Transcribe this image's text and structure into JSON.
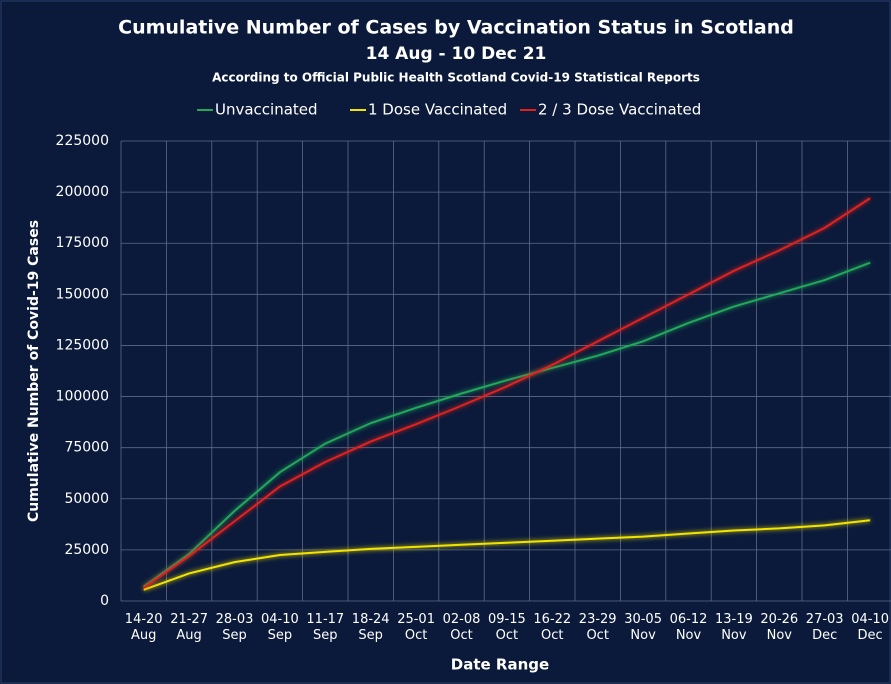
{
  "chart_data": {
    "type": "line",
    "title": "Cumulative Number of Cases by Vaccination Status in Scotland",
    "subtitle": "14 Aug - 10 Dec 21",
    "source": "According to Official Public Health Scotland Covid-19 Statistical Reports",
    "x_label": "Date Range",
    "y_label": "Cumulative Number of Covid-19 Cases",
    "categories": [
      "14-20 Aug",
      "21-27 Aug",
      "28-03 Sep",
      "04-10 Sep",
      "11-17 Sep",
      "18-24 Sep",
      "25-01 Oct",
      "02-08 Oct",
      "09-15 Oct",
      "16-22 Oct",
      "23-29 Oct",
      "30-05 Nov",
      "06-12 Nov",
      "13-19 Nov",
      "20-26 Nov",
      "27-03 Dec",
      "04-10 Dec"
    ],
    "series": [
      {
        "name": "Unvaccinated",
        "color": "#22a85a",
        "values": [
          7000,
          23000,
          44000,
          63000,
          77000,
          87000,
          94500,
          101500,
          108000,
          114000,
          120000,
          127000,
          136000,
          144000,
          150500,
          157000,
          165500
        ]
      },
      {
        "name": "1 Dose Vaccinated",
        "color": "#f2e400",
        "values": [
          5500,
          13500,
          19000,
          22500,
          24000,
          25500,
          26500,
          27500,
          28500,
          29500,
          30500,
          31500,
          33000,
          34500,
          35500,
          37000,
          39500
        ]
      },
      {
        "name": "2 / 3 Dose Vaccinated",
        "color": "#e3201e",
        "values": [
          6500,
          22000,
          39000,
          56000,
          68000,
          78000,
          86500,
          95500,
          105000,
          115500,
          127000,
          138500,
          150000,
          161500,
          171500,
          182500,
          197000
        ]
      }
    ],
    "ylim": [
      0,
      225000
    ],
    "yticks": [
      0,
      25000,
      50000,
      75000,
      100000,
      125000,
      150000,
      175000,
      200000,
      225000
    ],
    "grid": true,
    "legend": "top"
  }
}
